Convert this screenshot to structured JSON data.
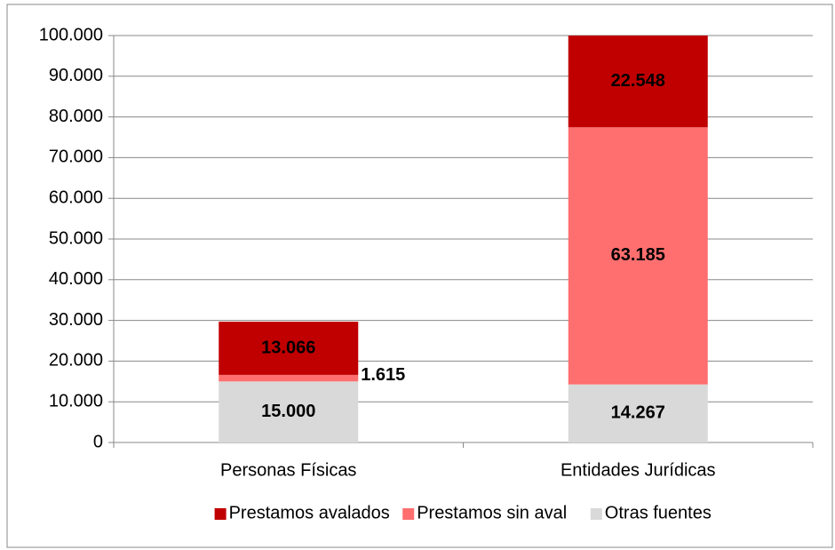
{
  "chart_data": {
    "type": "stacked_bar",
    "categories": [
      "Personas Físicas",
      "Entidades Jurídicas"
    ],
    "series": [
      {
        "name": "Prestamos avalados",
        "color": "#c00000",
        "label_color": "#ffffff",
        "values": [
          13066,
          22548
        ],
        "value_labels": [
          "13.066",
          "22.548"
        ]
      },
      {
        "name": "Prestamos sin aval",
        "color": "#ff6f6f",
        "label_color": "#000000",
        "values": [
          1615,
          63185
        ],
        "value_labels": [
          "1.615",
          "63.185"
        ]
      },
      {
        "name": "Otras fuentes",
        "color": "#d9d9d9",
        "label_color": "#000000",
        "values": [
          15000,
          14267
        ],
        "value_labels": [
          "15.000",
          "14.267"
        ]
      }
    ],
    "ylim": [
      0,
      100000
    ],
    "yticks": [
      0,
      {
        "value": 10000,
        "label": "10.000"
      },
      {
        "value": 20000,
        "label": "20.000"
      },
      {
        "value": 30000,
        "label": "30.000"
      },
      {
        "value": 40000,
        "label": "40.000"
      },
      {
        "value": 50000,
        "label": "50.000"
      },
      {
        "value": 60000,
        "label": "60.000"
      },
      {
        "value": 70000,
        "label": "70.000"
      },
      {
        "value": 80000,
        "label": "80.000"
      },
      {
        "value": 90000,
        "label": "90.000"
      },
      {
        "value": 100000,
        "label": "100.000"
      }
    ],
    "grid": true,
    "legend": "bottom"
  }
}
